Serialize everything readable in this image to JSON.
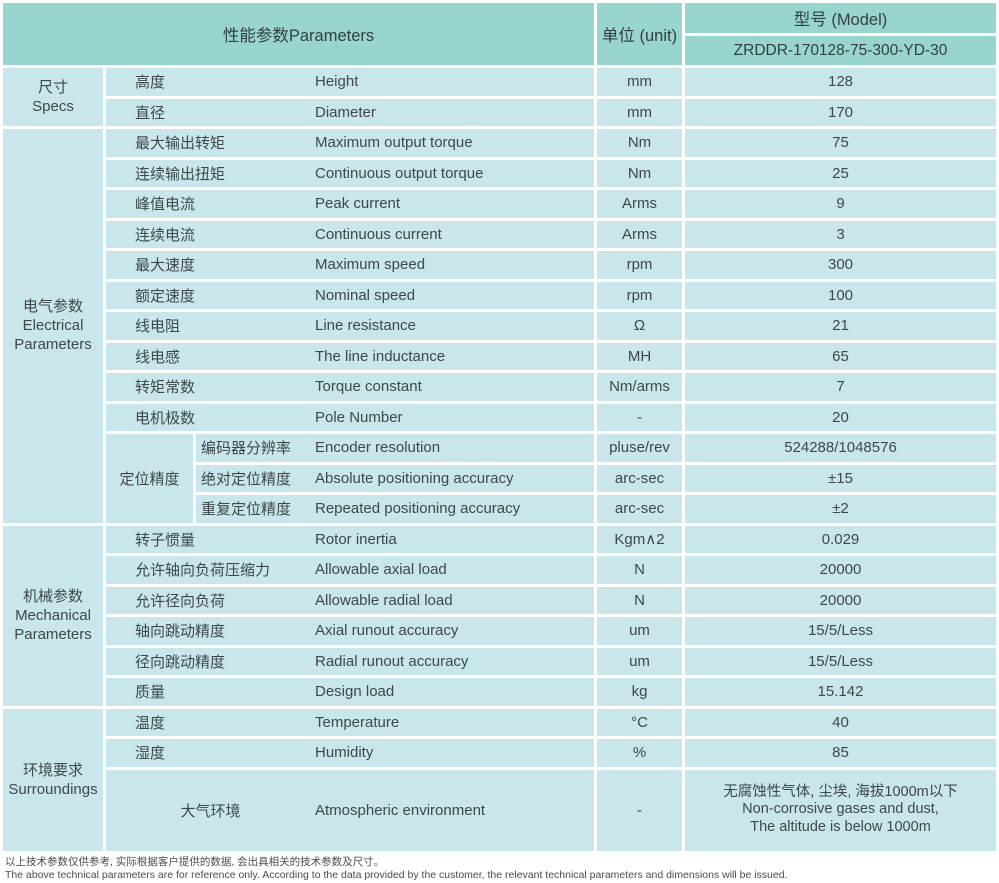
{
  "colors": {
    "header_bg": "#97d5ce",
    "row_bg": "#c8e6ec",
    "grid_line": "#ffffff",
    "text": "#3e484b"
  },
  "header": {
    "parameters_label": "性能参数Parameters",
    "unit_label": "单位 (unit)",
    "model_label": "型号 (Model)",
    "model_value": "ZRDDR-170128-75-300-YD-30"
  },
  "sections": [
    {
      "group_cn": "尺寸",
      "group_en": "Specs",
      "rows": [
        {
          "cn": "高度",
          "en": "Height",
          "unit": "mm",
          "value": "128"
        },
        {
          "cn": "直径",
          "en": "Diameter",
          "unit": "mm",
          "value": "170"
        }
      ]
    },
    {
      "group_cn": "电气参数",
      "group_en": "Electrical Parameters",
      "rows": [
        {
          "cn": "最大输出转矩",
          "en": "Maximum output torque",
          "unit": "Nm",
          "value": "75"
        },
        {
          "cn": "连续输出扭矩",
          "en": "Continuous output torque",
          "unit": "Nm",
          "value": "25"
        },
        {
          "cn": "峰值电流",
          "en": "Peak current",
          "unit": "Arms",
          "value": "9"
        },
        {
          "cn": "连续电流",
          "en": "Continuous current",
          "unit": "Arms",
          "value": "3"
        },
        {
          "cn": "最大速度",
          "en": "Maximum speed",
          "unit": "rpm",
          "value": "300"
        },
        {
          "cn": "额定速度",
          "en": "Nominal speed",
          "unit": "rpm",
          "value": "100"
        },
        {
          "cn": "线电阻",
          "en": "Line resistance",
          "unit": "Ω",
          "value": "21"
        },
        {
          "cn": "线电感",
          "en": "The line inductance",
          "unit": "MH",
          "value": "65"
        },
        {
          "cn": "转矩常数",
          "en": "Torque constant",
          "unit": "Nm/arms",
          "value": "7"
        },
        {
          "cn": "电机极数",
          "en": "Pole Number",
          "unit": "-",
          "value": "20"
        }
      ],
      "subgroup_label": "定位精度",
      "subgroup_rows": [
        {
          "cn": "编码器分辨率",
          "en": "Encoder resolution",
          "unit": "pluse/rev",
          "value": "524288/1048576"
        },
        {
          "cn": "绝对定位精度",
          "en": "Absolute positioning accuracy",
          "unit": "arc-sec",
          "value": "±15"
        },
        {
          "cn": "重复定位精度",
          "en": "Repeated positioning accuracy",
          "unit": "arc-sec",
          "value": "±2"
        }
      ]
    },
    {
      "group_cn": "机械参数",
      "group_en": "Mechanical Parameters",
      "rows": [
        {
          "cn": "转子惯量",
          "en": "Rotor inertia",
          "unit": "Kgm∧2",
          "value": "0.029"
        },
        {
          "cn": "允许轴向负荷压缩力",
          "en": "Allowable axial load",
          "unit": "N",
          "value": "20000"
        },
        {
          "cn": "允许径向负荷",
          "en": "Allowable radial load",
          "unit": "N",
          "value": "20000"
        },
        {
          "cn": "轴向跳动精度",
          "en": "Axial runout accuracy",
          "unit": "um",
          "value": "15/5/Less"
        },
        {
          "cn": "径向跳动精度",
          "en": "Radial runout accuracy",
          "unit": "um",
          "value": "15/5/Less"
        },
        {
          "cn": "质量",
          "en": "Design load",
          "unit": "kg",
          "value": "15.142"
        }
      ]
    },
    {
      "group_cn": "环境要求",
      "group_en": "Surroundings",
      "rows": [
        {
          "cn": "温度",
          "en": "Temperature",
          "unit": "°C",
          "value": "40"
        },
        {
          "cn": "湿度",
          "en": "Humidity",
          "unit": "%",
          "value": "85"
        }
      ],
      "atmosphere": {
        "cn": "大气环境",
        "en": "Atmospheric environment",
        "unit": "-",
        "value_lines": [
          "无腐蚀性气体, 尘埃, 海拔1000m以下",
          "Non-corrosive gases and dust,",
          "The altitude is below 1000m"
        ]
      }
    }
  ],
  "footnotes": {
    "cn": "以上技术参数仅供参考, 实际根据客户提供的数据, 会出具相关的技术参数及尺寸。",
    "en": "The above technical parameters are for reference only. According to the data provided by the customer, the relevant technical parameters and dimensions will be issued."
  }
}
